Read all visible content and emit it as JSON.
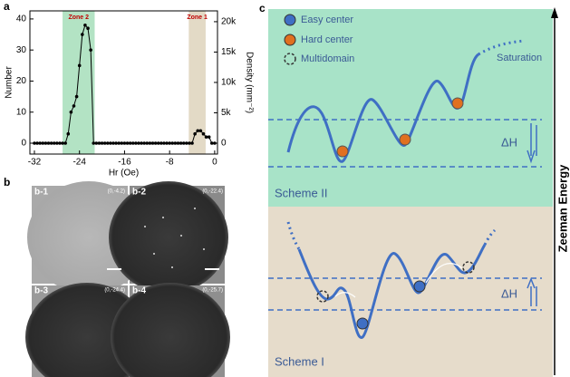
{
  "panel_labels": [
    "a",
    "b",
    "c"
  ],
  "chart_data": {
    "type": "line",
    "xlabel": "Hr (Oe)",
    "ylabel": "Number",
    "y2label": "Density (mm⁻²)",
    "xlim": [
      -32.8,
      0.5
    ],
    "xticks": [
      -32,
      -24,
      -16,
      -8,
      0
    ],
    "ylim": [
      -3.5,
      42.6
    ],
    "yticks": [
      0,
      10,
      20,
      30,
      40
    ],
    "y2lim": [
      -1790,
      21780
    ],
    "y2ticks": [
      0,
      {
        "value": 5000,
        "label": "5k"
      },
      {
        "value": 10000,
        "label": "10k"
      },
      {
        "value": 15000,
        "label": "15k"
      },
      {
        "value": 20000,
        "label": "20k"
      }
    ],
    "bands": [
      {
        "label": "Zone 2",
        "from": -27,
        "to": -21.3,
        "color": "#b3e3c4"
      },
      {
        "label": "Zone 1",
        "from": -4.6,
        "to": -1.6,
        "color": "#e3dac6"
      }
    ],
    "series": [
      {
        "name": "Number",
        "color": "#000000",
        "x": [
          -32,
          -31.5,
          -31,
          -30.5,
          -30,
          -29.5,
          -29,
          -28.5,
          -28,
          -27.5,
          -27,
          -26.5,
          -26,
          -25.5,
          -25,
          -24.5,
          -24,
          -23.5,
          -23,
          -22.5,
          -22,
          -21.5,
          -21,
          -20.5,
          -20,
          -19.5,
          -19,
          -18.5,
          -18,
          -17.5,
          -17,
          -16.5,
          -16,
          -15.5,
          -15,
          -14.5,
          -14,
          -13.5,
          -13,
          -12.5,
          -12,
          -11.5,
          -11,
          -10.5,
          -10,
          -9.5,
          -9,
          -8.5,
          -8,
          -7.5,
          -7,
          -6.5,
          -6,
          -5.5,
          -5,
          -4.5,
          -4,
          -3.5,
          -3,
          -2.5,
          -2,
          -1.5,
          -1,
          -0.5,
          0
        ],
        "values": [
          0,
          0,
          0,
          0,
          0,
          0,
          0,
          0,
          0,
          0,
          0,
          0,
          3,
          10,
          12,
          15,
          25,
          35,
          38,
          37,
          30,
          0,
          0,
          0,
          0,
          0,
          0,
          0,
          0,
          0,
          0,
          0,
          0,
          0,
          0,
          0,
          0,
          0,
          0,
          0,
          0,
          0,
          0,
          0,
          0,
          0,
          0,
          0,
          0,
          0,
          0,
          0,
          0,
          0,
          0,
          0,
          0,
          3,
          4,
          4,
          3,
          2,
          2,
          0,
          0
        ]
      }
    ]
  },
  "micrographs": [
    {
      "label": "b-1",
      "coords": "(0,-4.2)"
    },
    {
      "label": "b-2",
      "coords": "(0,-22.4)"
    },
    {
      "label": "b-3",
      "coords": "(0,-24.4)"
    },
    {
      "label": "b-4",
      "coords": "(0,-25.7)"
    }
  ],
  "diagram": {
    "legend": [
      "Easy center",
      "Hard center",
      "Multidomain"
    ],
    "saturation": "Saturation",
    "delta_h": [
      "ΔH",
      "ΔH"
    ],
    "schemes": [
      "Scheme II",
      "Scheme I"
    ],
    "energy_axis": "Zeeman Energy"
  }
}
